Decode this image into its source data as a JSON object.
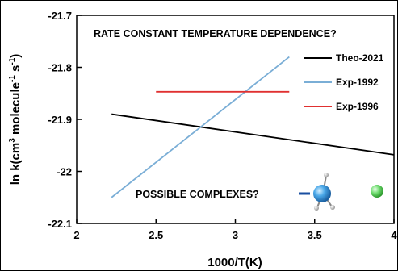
{
  "chart_data": {
    "type": "line",
    "xlabel": "1000/T(K)",
    "ylabel_main": "ln k(cm",
    "ylabel_sup1": "3",
    "ylabel_mid": " molecule",
    "ylabel_sup2": "-1",
    "ylabel_mid2": " s",
    "ylabel_sup3": "-1",
    "ylabel_end": ")",
    "xlim": [
      2,
      4
    ],
    "ylim": [
      -22.1,
      -21.7
    ],
    "x_ticks": [
      "2",
      "2.5",
      "3",
      "3.5",
      "4"
    ],
    "y_ticks": [
      "-21.7",
      "-21.8",
      "-21.9",
      "-22",
      "-22.1"
    ],
    "x_tick_values": [
      2,
      2.5,
      3,
      3.5,
      4
    ],
    "y_tick_values": [
      -21.7,
      -21.8,
      -21.9,
      -22.0,
      -22.1
    ],
    "legend_position": "top-right",
    "series": [
      {
        "name": "Theo-2021",
        "color": "#000000",
        "x": [
          2.22,
          4.0
        ],
        "y": [
          -21.89,
          -21.968
        ]
      },
      {
        "name": "Exp-1992",
        "color": "#7aaed6",
        "x": [
          2.22,
          3.34
        ],
        "y": [
          -22.05,
          -21.78
        ]
      },
      {
        "name": "Exp-1996",
        "color": "#e03030",
        "x": [
          2.5,
          3.34
        ],
        "y": [
          -21.847,
          -21.847
        ]
      }
    ],
    "annotations": {
      "title": "RATE CONSTANT TEMPERATURE DEPENDENCE?",
      "complexes": "POSSIBLE COMPLEXES?"
    }
  }
}
